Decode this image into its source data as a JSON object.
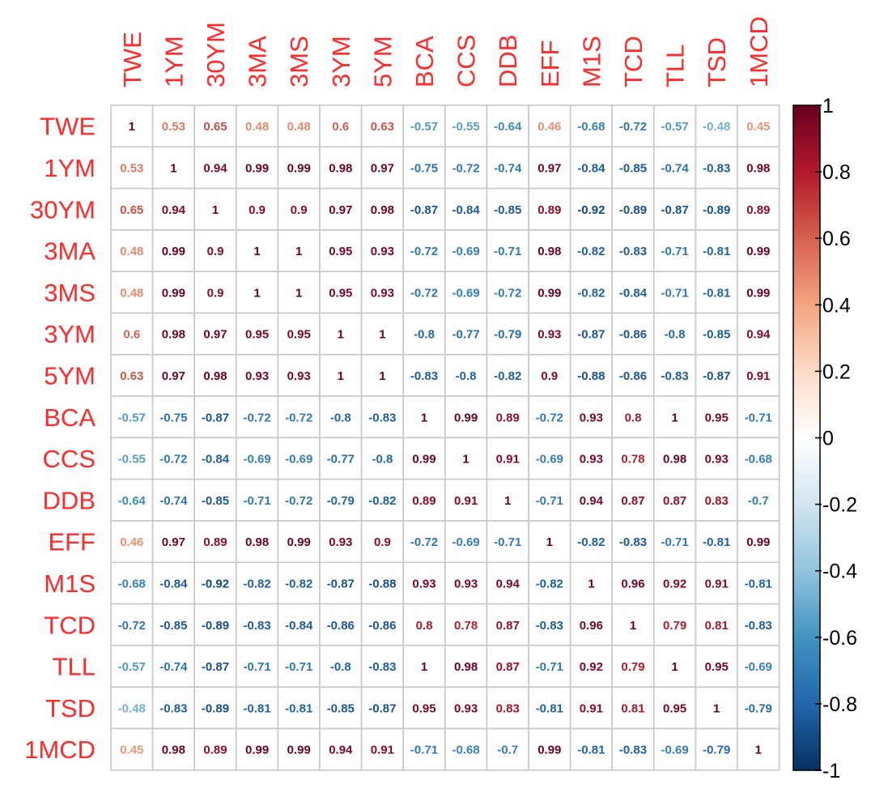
{
  "chart_data": {
    "type": "heatmap",
    "title": "",
    "xlabel": "",
    "ylabel": "",
    "labels": [
      "TWE",
      "1YM",
      "30YM",
      "3MA",
      "3MS",
      "3YM",
      "5YM",
      "BCA",
      "CCS",
      "DDB",
      "EFF",
      "M1S",
      "TCD",
      "TLL",
      "TSD",
      "1MCD"
    ],
    "values": [
      [
        1,
        0.53,
        0.65,
        0.48,
        0.48,
        0.6,
        0.63,
        -0.57,
        -0.55,
        -0.64,
        0.46,
        -0.68,
        -0.72,
        -0.57,
        -0.48,
        0.45
      ],
      [
        0.53,
        1,
        0.94,
        0.99,
        0.99,
        0.98,
        0.97,
        -0.75,
        -0.72,
        -0.74,
        0.97,
        -0.84,
        -0.85,
        -0.74,
        -0.83,
        0.98
      ],
      [
        0.65,
        0.94,
        1,
        0.9,
        0.9,
        0.97,
        0.98,
        -0.87,
        -0.84,
        -0.85,
        0.89,
        -0.92,
        -0.89,
        -0.87,
        -0.89,
        0.89
      ],
      [
        0.48,
        0.99,
        0.9,
        1,
        1,
        0.95,
        0.93,
        -0.72,
        -0.69,
        -0.71,
        0.98,
        -0.82,
        -0.83,
        -0.71,
        -0.81,
        0.99
      ],
      [
        0.48,
        0.99,
        0.9,
        1,
        1,
        0.95,
        0.93,
        -0.72,
        -0.69,
        -0.72,
        0.99,
        -0.82,
        -0.84,
        -0.71,
        -0.81,
        0.99
      ],
      [
        0.6,
        0.98,
        0.97,
        0.95,
        0.95,
        1,
        1,
        -0.8,
        -0.77,
        -0.79,
        0.93,
        -0.87,
        -0.86,
        -0.8,
        -0.85,
        0.94
      ],
      [
        0.63,
        0.97,
        0.98,
        0.93,
        0.93,
        1,
        1,
        -0.83,
        -0.8,
        -0.82,
        0.9,
        -0.88,
        -0.86,
        -0.83,
        -0.87,
        0.91
      ],
      [
        -0.57,
        -0.75,
        -0.87,
        -0.72,
        -0.72,
        -0.8,
        -0.83,
        1,
        0.99,
        0.89,
        -0.72,
        0.93,
        0.8,
        1,
        0.95,
        -0.71
      ],
      [
        -0.55,
        -0.72,
        -0.84,
        -0.69,
        -0.69,
        -0.77,
        -0.8,
        0.99,
        1,
        0.91,
        -0.69,
        0.93,
        0.78,
        0.98,
        0.93,
        -0.68
      ],
      [
        -0.64,
        -0.74,
        -0.85,
        -0.71,
        -0.72,
        -0.79,
        -0.82,
        0.89,
        0.91,
        1,
        -0.71,
        0.94,
        0.87,
        0.87,
        0.83,
        -0.7
      ],
      [
        0.46,
        0.97,
        0.89,
        0.98,
        0.99,
        0.93,
        0.9,
        -0.72,
        -0.69,
        -0.71,
        1,
        -0.82,
        -0.83,
        -0.71,
        -0.81,
        0.99
      ],
      [
        -0.68,
        -0.84,
        -0.92,
        -0.82,
        -0.82,
        -0.87,
        -0.88,
        0.93,
        0.93,
        0.94,
        -0.82,
        1,
        0.96,
        0.92,
        0.91,
        -0.81
      ],
      [
        -0.72,
        -0.85,
        -0.89,
        -0.83,
        -0.84,
        -0.86,
        -0.86,
        0.8,
        0.78,
        0.87,
        -0.83,
        0.96,
        1,
        0.79,
        0.81,
        -0.83
      ],
      [
        -0.57,
        -0.74,
        -0.87,
        -0.71,
        -0.71,
        -0.8,
        -0.83,
        1,
        0.98,
        0.87,
        -0.71,
        0.92,
        0.79,
        1,
        0.95,
        -0.69
      ],
      [
        -0.48,
        -0.83,
        -0.89,
        -0.81,
        -0.81,
        -0.85,
        -0.87,
        0.95,
        0.93,
        0.83,
        -0.81,
        0.91,
        0.81,
        0.95,
        1,
        -0.79
      ],
      [
        0.45,
        0.98,
        0.89,
        0.99,
        0.99,
        0.94,
        0.91,
        -0.71,
        -0.68,
        -0.7,
        0.99,
        -0.81,
        -0.83,
        -0.69,
        -0.79,
        1
      ]
    ],
    "colorbar": {
      "range": [
        -1,
        1
      ],
      "ticks": [
        1,
        0.8,
        0.6,
        0.4,
        0.2,
        0,
        -0.2,
        -0.4,
        -0.6,
        -0.8,
        -1
      ],
      "tick_labels": [
        "1",
        "0.8",
        "0.6",
        "0.4",
        "0.2",
        "0",
        "-0.2",
        "-0.4",
        "-0.6",
        "-0.8",
        "-1"
      ],
      "colors": [
        "#67001F",
        "#B2182B",
        "#D6604D",
        "#F4A582",
        "#FDDBC7",
        "#FFFFFF",
        "#D1E5F0",
        "#92C5DE",
        "#4393C3",
        "#2166AC",
        "#053061"
      ]
    },
    "label_color": "#FF2A2A",
    "grid": true,
    "legend_position": "right"
  }
}
